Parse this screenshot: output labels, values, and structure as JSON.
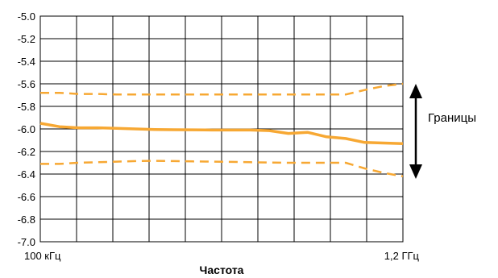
{
  "chart_data": {
    "type": "line",
    "title": "",
    "xlabel": "Частота",
    "ylabel": "",
    "x_tick_labels": [
      "100 кГц",
      "1,2 ГГц"
    ],
    "x_categories": [
      "100 кГц",
      "",
      "",
      "",
      "",
      "",
      "",
      "",
      "",
      "",
      "",
      "",
      "",
      "",
      "",
      "",
      "",
      "",
      "",
      "1,2 ГГц"
    ],
    "y_ticks": [
      -5.0,
      -5.2,
      -5.4,
      -5.6,
      -5.8,
      -6.0,
      -6.2,
      -6.4,
      -6.6,
      -6.8,
      -7.0
    ],
    "y_tick_labels": [
      "-5.0",
      "-5.2",
      "-5.4",
      "-5.6",
      "-5.8",
      "-6.0",
      "-6.2",
      "-6.4",
      "-6.6",
      "-6.8",
      "-7.0"
    ],
    "ylim": [
      -7.0,
      -5.0
    ],
    "grid": true,
    "series": [
      {
        "style": "solid",
        "values": [
          -5.95,
          -5.98,
          -5.99,
          -5.99,
          -5.995,
          -6.0,
          -6.005,
          -6.007,
          -6.008,
          -6.01,
          -6.01,
          -6.01,
          -6.015,
          -6.04,
          -6.03,
          -6.07,
          -6.085,
          -6.12,
          -6.125,
          -6.13
        ]
      },
      {
        "style": "dashed",
        "values": [
          -5.68,
          -5.68,
          -5.69,
          -5.69,
          -5.695,
          -5.695,
          -5.695,
          -5.695,
          -5.695,
          -5.695,
          -5.695,
          -5.695,
          -5.695,
          -5.695,
          -5.695,
          -5.695,
          -5.695,
          -5.655,
          -5.62,
          -5.6
        ]
      },
      {
        "style": "dashed",
        "values": [
          -6.31,
          -6.31,
          -6.3,
          -6.295,
          -6.29,
          -6.285,
          -6.283,
          -6.285,
          -6.288,
          -6.29,
          -6.292,
          -6.295,
          -6.298,
          -6.3,
          -6.3,
          -6.3,
          -6.3,
          -6.35,
          -6.39,
          -6.42
        ]
      }
    ],
    "line_color": "#f7a833",
    "annotation": {
      "text": "Границы",
      "arrow": "double-vertical"
    }
  }
}
